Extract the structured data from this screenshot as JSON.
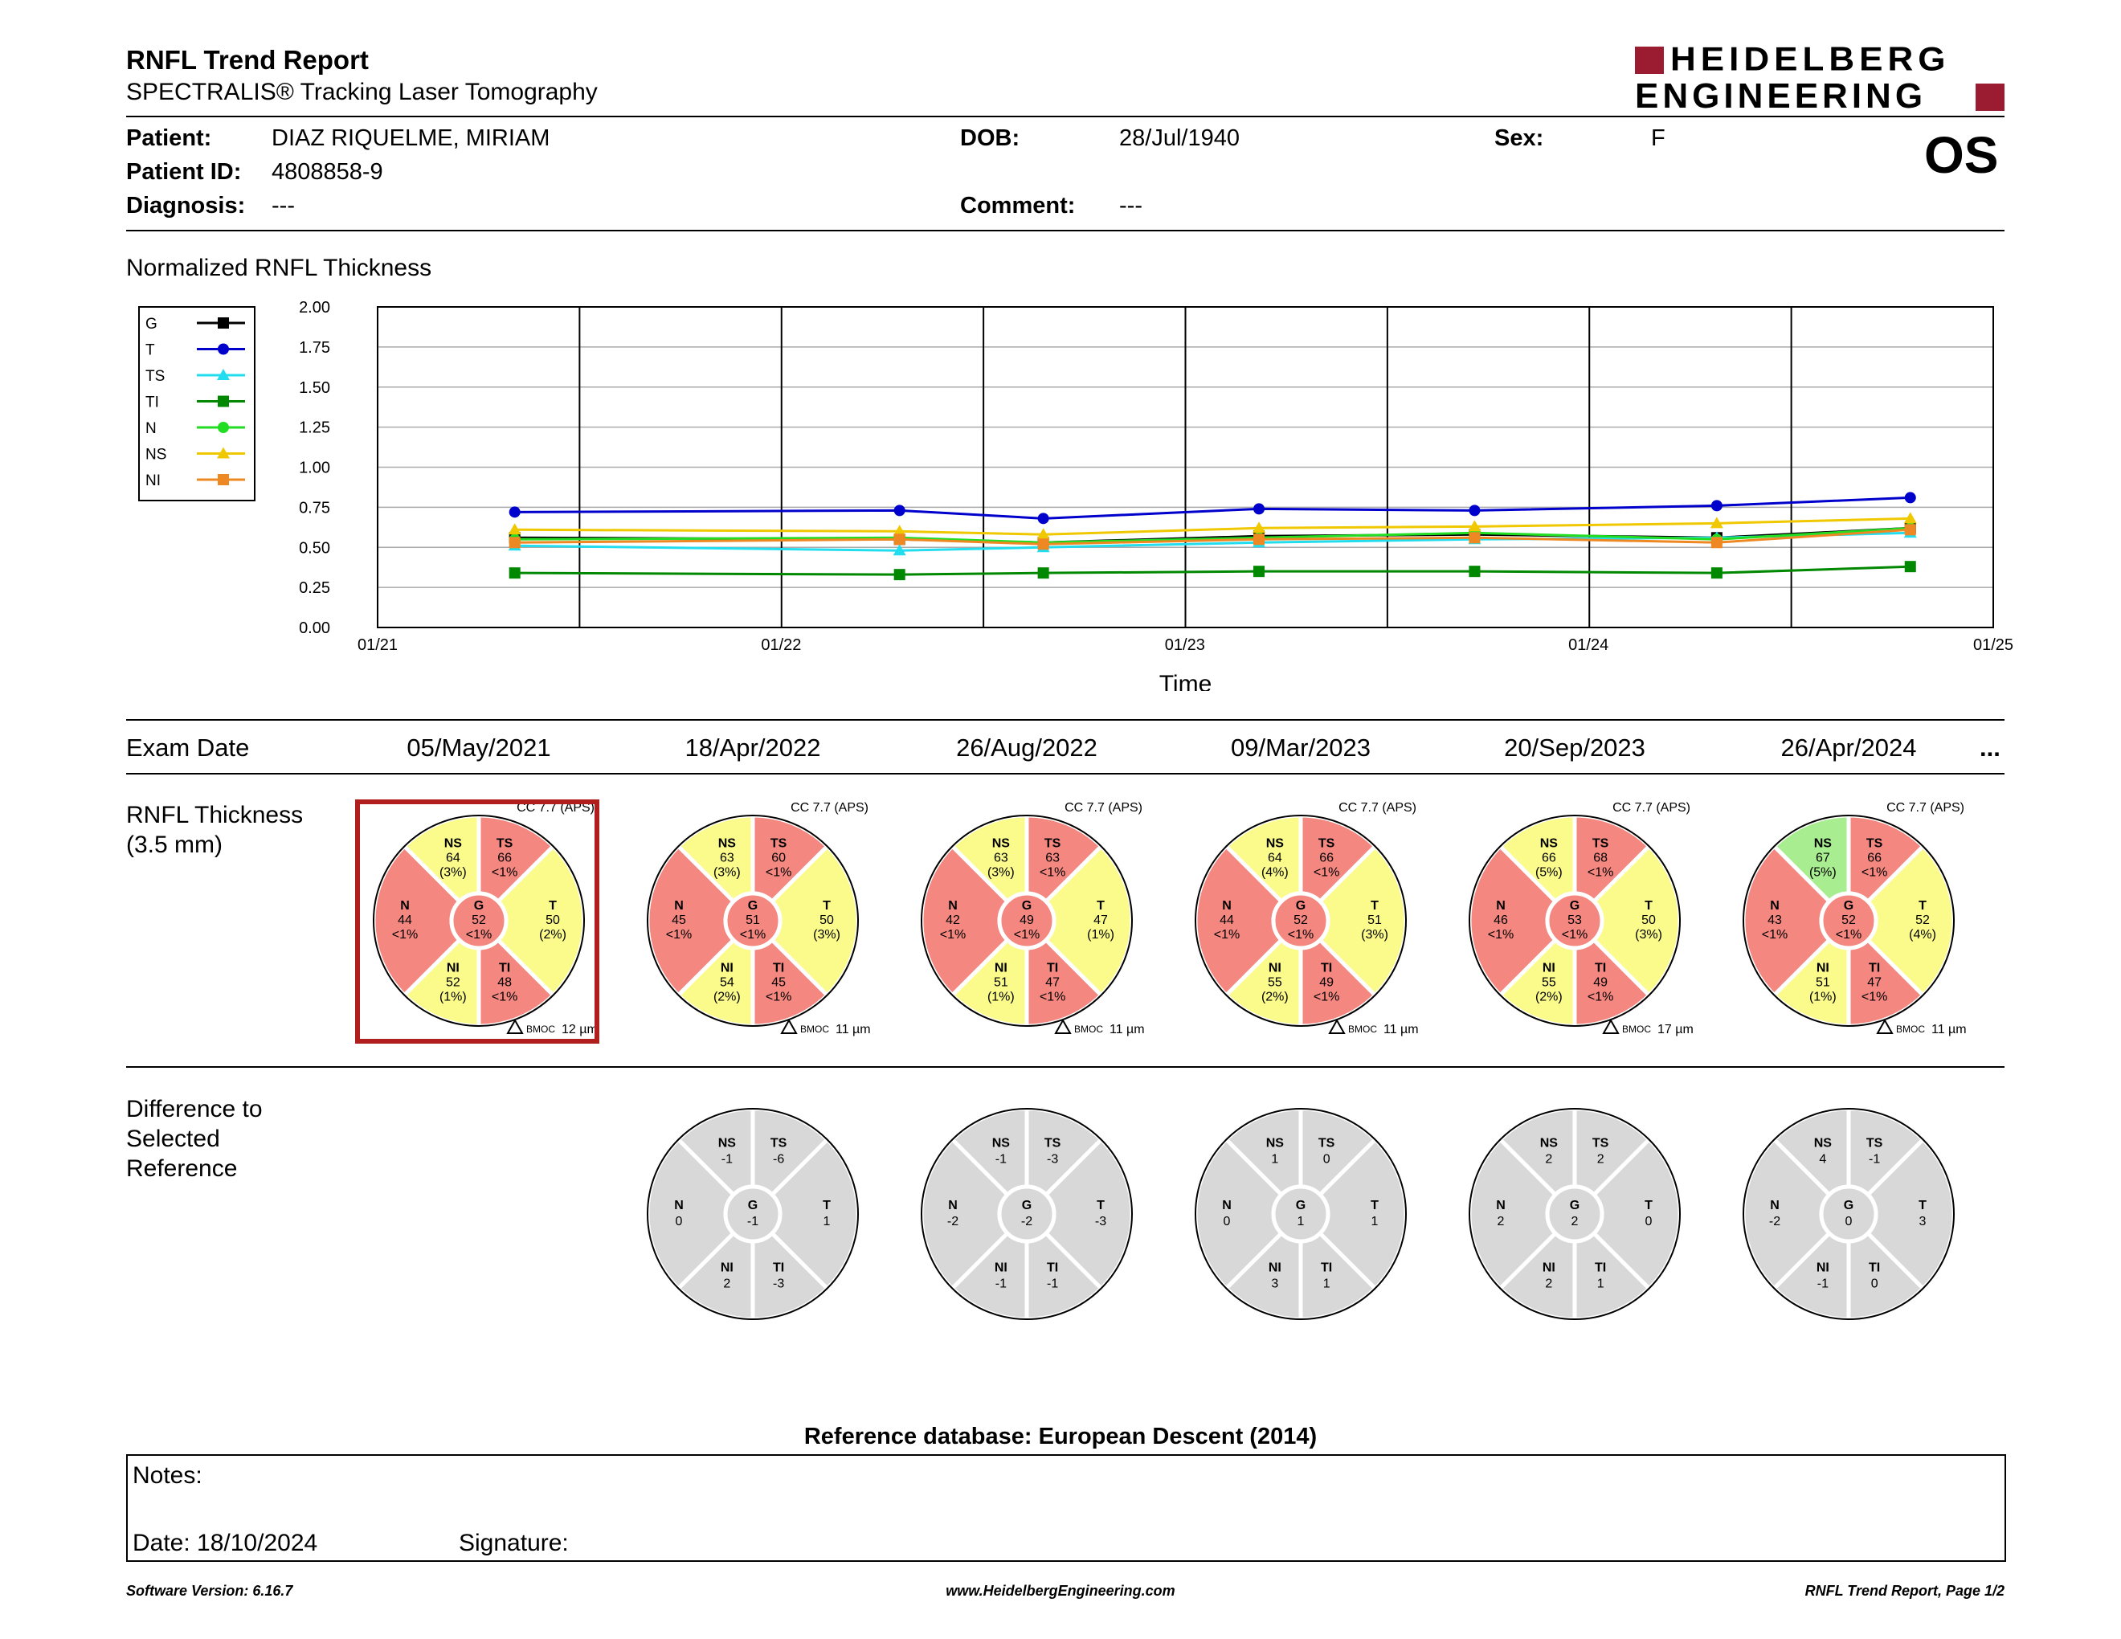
{
  "header": {
    "title": "RNFL Trend Report",
    "subtitle": "SPECTRALIS® Tracking Laser Tomography",
    "logo_line1": "HEIDELBERG",
    "logo_line2": "ENGINEERING",
    "eye": "OS"
  },
  "patient": {
    "patient_label": "Patient:",
    "patient_value": "DIAZ RIQUELME, MIRIAM",
    "id_label": "Patient ID:",
    "id_value": "4808858-9",
    "diagnosis_label": "Diagnosis:",
    "diagnosis_value": "---",
    "dob_label": "DOB:",
    "dob_value": "28/Jul/1940",
    "comment_label": "Comment:",
    "comment_value": "---",
    "sex_label": "Sex:",
    "sex_value": "F"
  },
  "chart_section_title": "Normalized RNFL Thickness",
  "chart_data": {
    "type": "line",
    "title": "",
    "xlabel": "Time",
    "ylabel": "",
    "ylim": [
      0,
      2
    ],
    "y_ticks": [
      "0.00",
      "0.25",
      "0.50",
      "0.75",
      "1.00",
      "1.25",
      "1.50",
      "1.75",
      "2.00"
    ],
    "x_ticks": [
      "01/21",
      "01/22",
      "01/23",
      "01/24",
      "01/25"
    ],
    "x_tick_dates": [
      "2021-01-01",
      "2022-01-01",
      "2023-01-01",
      "2024-01-01",
      "2025-01-01"
    ],
    "x": [
      "2021-05-05",
      "2022-04-18",
      "2022-08-26",
      "2023-03-09",
      "2023-09-20",
      "2024-04-26",
      "2024-10-18"
    ],
    "legend_position": "left",
    "grid": true,
    "series": [
      {
        "name": "G",
        "color": "#000000",
        "marker": "square",
        "values": [
          0.56,
          0.55,
          0.53,
          0.57,
          0.58,
          0.56,
          0.62
        ]
      },
      {
        "name": "T",
        "color": "#0000cc",
        "marker": "circle",
        "values": [
          0.72,
          0.73,
          0.68,
          0.74,
          0.73,
          0.76,
          0.81
        ]
      },
      {
        "name": "TS",
        "color": "#22ddee",
        "marker": "triangle",
        "values": [
          0.51,
          0.48,
          0.5,
          0.53,
          0.55,
          0.56,
          0.59
        ]
      },
      {
        "name": "TI",
        "color": "#008800",
        "marker": "square",
        "values": [
          0.34,
          0.33,
          0.34,
          0.35,
          0.35,
          0.34,
          0.38
        ]
      },
      {
        "name": "N",
        "color": "#22dd22",
        "marker": "circle",
        "values": [
          0.55,
          0.56,
          0.53,
          0.56,
          0.59,
          0.55,
          0.62
        ]
      },
      {
        "name": "NS",
        "color": "#f0c800",
        "marker": "triangle",
        "values": [
          0.61,
          0.6,
          0.58,
          0.62,
          0.63,
          0.65,
          0.68
        ]
      },
      {
        "name": "NI",
        "color": "#ee8822",
        "marker": "square",
        "values": [
          0.53,
          0.55,
          0.52,
          0.55,
          0.56,
          0.53,
          0.61
        ]
      }
    ]
  },
  "exam_label": "Exam Date",
  "exam_more": "...",
  "rnfl_label": [
    "RNFL Thickness",
    "(3.5 mm)"
  ],
  "diff_label": [
    "Difference to",
    "Selected",
    "Reference"
  ],
  "colors": {
    "red": "#f4877f",
    "yellow": "#fbfb8b",
    "green": "#a8ed8f",
    "gray": "#d8d8d8",
    "selected": "#b01e1e"
  },
  "exams": [
    {
      "date": "05/May/2021",
      "cc": "CC 7.7 (APS)",
      "bmo": "12 µm",
      "selected": true,
      "sectors": {
        "NS": {
          "v": "64",
          "p": "(3%)",
          "c": "yellow"
        },
        "TS": {
          "v": "66",
          "p": "<1%",
          "c": "red"
        },
        "N": {
          "v": "44",
          "p": "<1%",
          "c": "red"
        },
        "G": {
          "v": "52",
          "p": "<1%",
          "c": "red"
        },
        "T": {
          "v": "50",
          "p": "(2%)",
          "c": "yellow"
        },
        "NI": {
          "v": "52",
          "p": "(1%)",
          "c": "yellow"
        },
        "TI": {
          "v": "48",
          "p": "<1%",
          "c": "red"
        }
      },
      "diff": null
    },
    {
      "date": "18/Apr/2022",
      "cc": "CC 7.7 (APS)",
      "bmo": "11 µm",
      "selected": false,
      "sectors": {
        "NS": {
          "v": "63",
          "p": "(3%)",
          "c": "yellow"
        },
        "TS": {
          "v": "60",
          "p": "<1%",
          "c": "red"
        },
        "N": {
          "v": "45",
          "p": "<1%",
          "c": "red"
        },
        "G": {
          "v": "51",
          "p": "<1%",
          "c": "red"
        },
        "T": {
          "v": "50",
          "p": "(3%)",
          "c": "yellow"
        },
        "NI": {
          "v": "54",
          "p": "(2%)",
          "c": "yellow"
        },
        "TI": {
          "v": "45",
          "p": "<1%",
          "c": "red"
        }
      },
      "diff": {
        "NS": "-1",
        "TS": "-6",
        "N": "0",
        "G": "-1",
        "T": "1",
        "NI": "2",
        "TI": "-3"
      }
    },
    {
      "date": "26/Aug/2022",
      "cc": "CC 7.7 (APS)",
      "bmo": "11 µm",
      "selected": false,
      "sectors": {
        "NS": {
          "v": "63",
          "p": "(3%)",
          "c": "yellow"
        },
        "TS": {
          "v": "63",
          "p": "<1%",
          "c": "red"
        },
        "N": {
          "v": "42",
          "p": "<1%",
          "c": "red"
        },
        "G": {
          "v": "49",
          "p": "<1%",
          "c": "red"
        },
        "T": {
          "v": "47",
          "p": "(1%)",
          "c": "yellow"
        },
        "NI": {
          "v": "51",
          "p": "(1%)",
          "c": "yellow"
        },
        "TI": {
          "v": "47",
          "p": "<1%",
          "c": "red"
        }
      },
      "diff": {
        "NS": "-1",
        "TS": "-3",
        "N": "-2",
        "G": "-2",
        "T": "-3",
        "NI": "-1",
        "TI": "-1"
      }
    },
    {
      "date": "09/Mar/2023",
      "cc": "CC 7.7 (APS)",
      "bmo": "11 µm",
      "selected": false,
      "sectors": {
        "NS": {
          "v": "64",
          "p": "(4%)",
          "c": "yellow"
        },
        "TS": {
          "v": "66",
          "p": "<1%",
          "c": "red"
        },
        "N": {
          "v": "44",
          "p": "<1%",
          "c": "red"
        },
        "G": {
          "v": "52",
          "p": "<1%",
          "c": "red"
        },
        "T": {
          "v": "51",
          "p": "(3%)",
          "c": "yellow"
        },
        "NI": {
          "v": "55",
          "p": "(2%)",
          "c": "yellow"
        },
        "TI": {
          "v": "49",
          "p": "<1%",
          "c": "red"
        }
      },
      "diff": {
        "NS": "1",
        "TS": "0",
        "N": "0",
        "G": "1",
        "T": "1",
        "NI": "3",
        "TI": "1"
      }
    },
    {
      "date": "20/Sep/2023",
      "cc": "CC 7.7 (APS)",
      "bmo": "17 µm",
      "selected": false,
      "sectors": {
        "NS": {
          "v": "66",
          "p": "(5%)",
          "c": "yellow"
        },
        "TS": {
          "v": "68",
          "p": "<1%",
          "c": "red"
        },
        "N": {
          "v": "46",
          "p": "<1%",
          "c": "red"
        },
        "G": {
          "v": "53",
          "p": "<1%",
          "c": "red"
        },
        "T": {
          "v": "50",
          "p": "(3%)",
          "c": "yellow"
        },
        "NI": {
          "v": "55",
          "p": "(2%)",
          "c": "yellow"
        },
        "TI": {
          "v": "49",
          "p": "<1%",
          "c": "red"
        }
      },
      "diff": {
        "NS": "2",
        "TS": "2",
        "N": "2",
        "G": "2",
        "T": "0",
        "NI": "2",
        "TI": "1"
      }
    },
    {
      "date": "26/Apr/2024",
      "cc": "CC 7.7 (APS)",
      "bmo": "11 µm",
      "selected": false,
      "sectors": {
        "NS": {
          "v": "67",
          "p": "(5%)",
          "c": "green"
        },
        "TS": {
          "v": "66",
          "p": "<1%",
          "c": "red"
        },
        "N": {
          "v": "43",
          "p": "<1%",
          "c": "red"
        },
        "G": {
          "v": "52",
          "p": "<1%",
          "c": "red"
        },
        "T": {
          "v": "52",
          "p": "(4%)",
          "c": "yellow"
        },
        "NI": {
          "v": "51",
          "p": "(1%)",
          "c": "yellow"
        },
        "TI": {
          "v": "47",
          "p": "<1%",
          "c": "red"
        }
      },
      "diff": {
        "NS": "4",
        "TS": "-1",
        "N": "-2",
        "G": "0",
        "T": "3",
        "NI": "-1",
        "TI": "0"
      }
    }
  ],
  "bmo_label": "BMOC",
  "reference_db": "Reference database: European Descent (2014)",
  "notes": {
    "notes_label": "Notes:",
    "date_label": "Date: 18/10/2024",
    "signature_label": "Signature:"
  },
  "footer": {
    "software": "Software Version: 6.16.7",
    "website": "www.HeidelbergEngineering.com",
    "page": "RNFL Trend Report, Page 1/2"
  }
}
